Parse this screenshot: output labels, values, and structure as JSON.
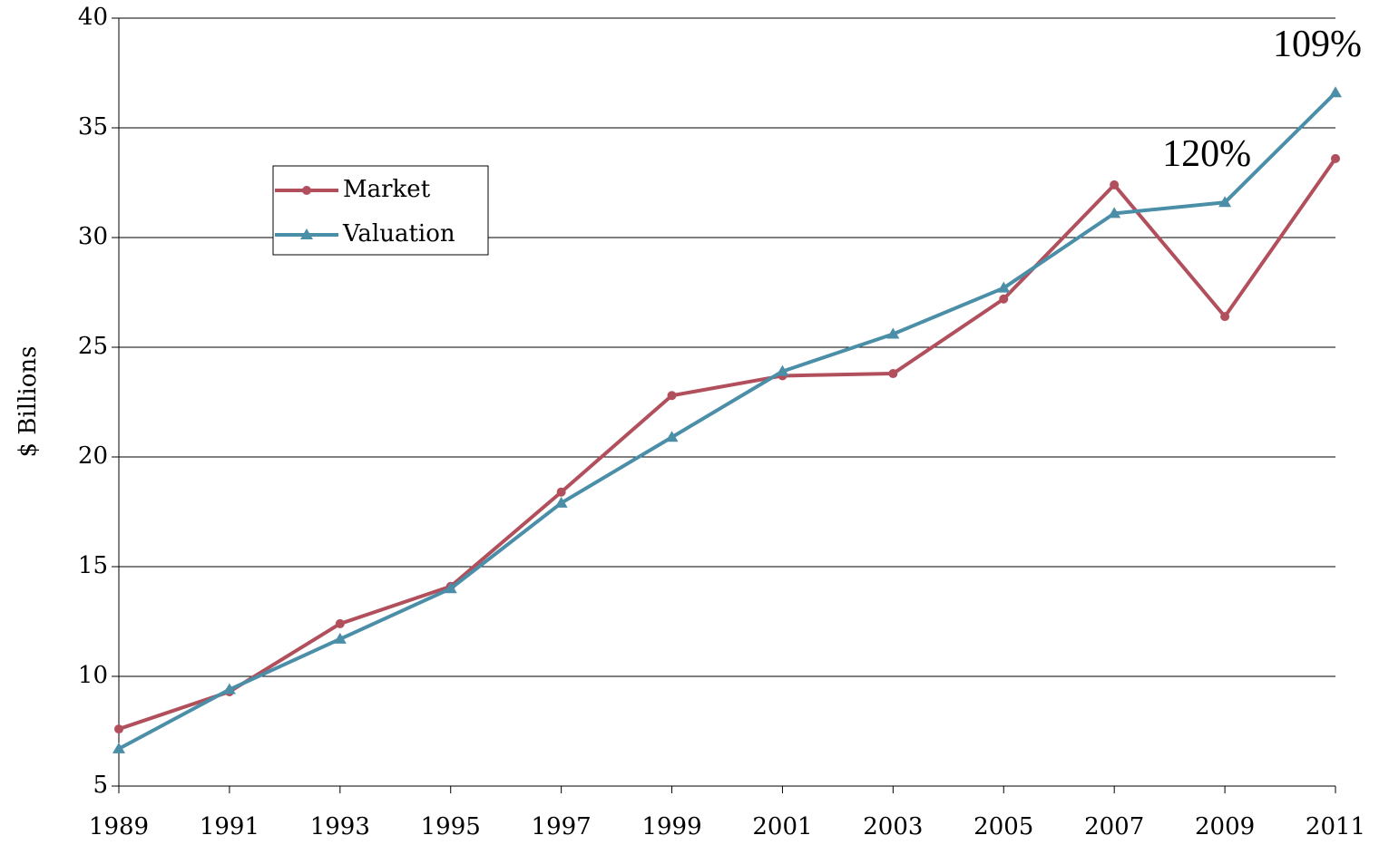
{
  "chart_data": {
    "type": "line",
    "y_label": "$ Billions",
    "x": [
      1989,
      1991,
      1993,
      1995,
      1997,
      1999,
      2001,
      2003,
      2005,
      2007,
      2009,
      2011
    ],
    "series": [
      {
        "name": "Market",
        "color": "#b1505c",
        "marker": "circle",
        "values": [
          7.6,
          9.3,
          12.4,
          14.1,
          18.4,
          22.8,
          23.7,
          23.8,
          27.2,
          32.4,
          26.4,
          33.6
        ]
      },
      {
        "name": "Valuation",
        "color": "#4a8ea8",
        "marker": "triangle",
        "values": [
          6.7,
          9.4,
          11.7,
          14.0,
          17.9,
          20.9,
          23.9,
          25.6,
          27.7,
          31.1,
          31.6,
          36.6
        ]
      }
    ],
    "annotations": [
      "120%",
      "109%"
    ],
    "xlim": [
      1989,
      2011
    ],
    "xticks": [
      1989,
      1991,
      1993,
      1995,
      1997,
      1999,
      2001,
      2003,
      2005,
      2007,
      2009,
      2011
    ],
    "ylim": [
      5,
      40
    ],
    "yticks": [
      5,
      10,
      15,
      20,
      25,
      30,
      35,
      40
    ],
    "grid": true,
    "legend": "upper left"
  }
}
